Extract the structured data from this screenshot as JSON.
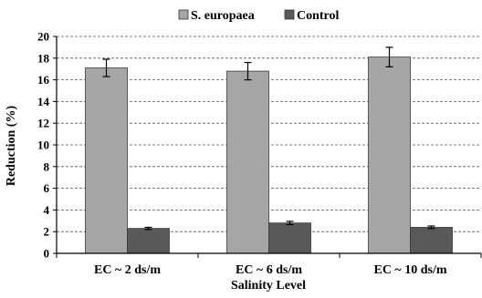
{
  "chart_data": {
    "type": "bar",
    "title": "",
    "xlabel": "Salinity Level",
    "ylabel": "Reduction (%)",
    "ylim": [
      0,
      20
    ],
    "yticks": [
      0,
      2,
      4,
      6,
      8,
      10,
      12,
      14,
      16,
      18,
      20
    ],
    "grid": true,
    "legend_position": "top",
    "categories": [
      "EC ~ 2 ds/m",
      "EC ~ 6 ds/m",
      "EC ~ 10 ds/m"
    ],
    "series": [
      {
        "name": "S. europaea",
        "color": "#a6a6a6",
        "values": [
          17.1,
          16.8,
          18.1
        ],
        "errors": [
          0.8,
          0.8,
          0.9
        ]
      },
      {
        "name": "Control",
        "color": "#595959",
        "values": [
          2.3,
          2.8,
          2.4
        ],
        "errors": [
          0.1,
          0.15,
          0.12
        ]
      }
    ]
  }
}
